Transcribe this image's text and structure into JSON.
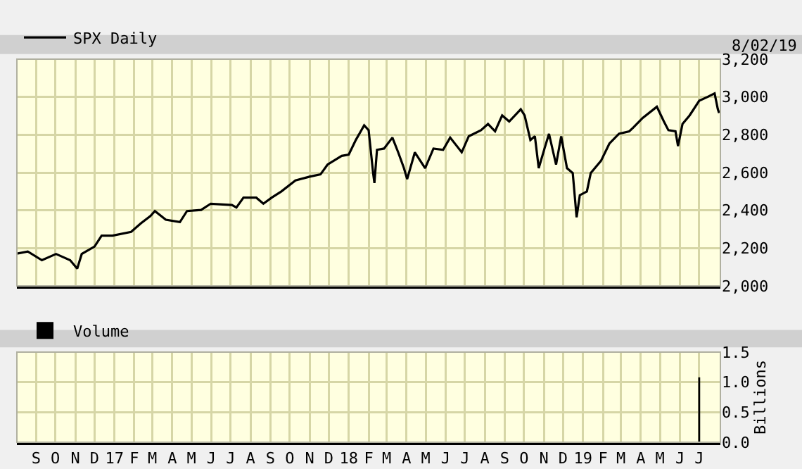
{
  "chart_data": [
    {
      "type": "line",
      "annotations": [
        "8/02/19"
      ],
      "legend": "top left",
      "grid": true,
      "tick_labels": "y",
      "marker": "none",
      "line_style": "solid",
      "x": [
        "2016-08-02",
        "2016-08-19",
        "2016-09-10",
        "2016-10-02",
        "2016-10-24",
        "2016-11-04",
        "2016-11-11",
        "2016-12-01",
        "2016-12-12",
        "2016-12-29",
        "2017-01-27",
        "2017-02-11",
        "2017-02-26",
        "2017-03-05",
        "2017-03-22",
        "2017-04-13",
        "2017-04-24",
        "2017-05-16",
        "2017-05-31",
        "2017-07-03",
        "2017-07-10",
        "2017-07-21",
        "2017-08-10",
        "2017-08-21",
        "2017-09-03",
        "2017-09-18",
        "2017-10-10",
        "2017-11-01",
        "2017-11-18",
        "2017-11-29",
        "2017-12-21",
        "2018-01-01",
        "2018-01-12",
        "2018-01-25",
        "2018-02-01",
        "2018-02-08",
        "2018-02-10",
        "2018-02-14",
        "2018-02-25",
        "2018-03-10",
        "2018-03-19",
        "2018-03-28",
        "2018-04-02",
        "2018-04-14",
        "2018-04-30",
        "2018-05-13",
        "2018-05-28",
        "2018-06-08",
        "2018-06-26",
        "2018-07-07",
        "2018-07-26",
        "2018-08-06",
        "2018-08-17",
        "2018-08-28",
        "2018-09-08",
        "2018-09-26",
        "2018-10-02",
        "2018-10-11",
        "2018-10-18",
        "2018-10-24",
        "2018-11-02",
        "2018-11-09",
        "2018-11-20",
        "2018-11-28",
        "2018-12-07",
        "2018-12-16",
        "2018-12-22",
        "2018-12-27",
        "2019-01-07",
        "2019-01-13",
        "2019-01-29",
        "2019-02-11",
        "2019-02-26",
        "2019-03-14",
        "2019-03-20",
        "2019-04-04",
        "2019-04-26",
        "2019-05-07",
        "2019-05-14",
        "2019-05-25",
        "2019-05-29",
        "2019-06-05",
        "2019-06-16",
        "2019-07-01",
        "2019-07-14",
        "2019-07-25",
        "2019-07-30",
        "2019-08-01"
      ],
      "series": [
        {
          "name": "SPX Daily",
          "color": "#000000",
          "values": [
            2171,
            2182,
            2136,
            2169,
            2136,
            2091,
            2169,
            2208,
            2266,
            2266,
            2286,
            2331,
            2370,
            2396,
            2350,
            2338,
            2396,
            2402,
            2435,
            2428,
            2415,
            2467,
            2467,
            2435,
            2467,
            2500,
            2558,
            2578,
            2590,
            2642,
            2688,
            2695,
            2772,
            2850,
            2824,
            2597,
            2545,
            2720,
            2727,
            2785,
            2707,
            2623,
            2565,
            2707,
            2623,
            2727,
            2720,
            2785,
            2707,
            2792,
            2824,
            2857,
            2818,
            2902,
            2870,
            2935,
            2902,
            2772,
            2792,
            2623,
            2727,
            2805,
            2642,
            2792,
            2623,
            2597,
            2363,
            2480,
            2500,
            2597,
            2662,
            2753,
            2805,
            2818,
            2837,
            2889,
            2948,
            2870,
            2824,
            2818,
            2740,
            2857,
            2902,
            2980,
            3000,
            3019,
            2935,
            2915
          ]
        }
      ],
      "xlim": [
        "2016-08-02",
        "2019-08-03"
      ],
      "xticks": [
        {
          "value": "2016-09-01",
          "label": null
        },
        {
          "value": "2016-10-01",
          "label": null
        },
        {
          "value": "2016-11-01",
          "label": null
        },
        {
          "value": "2016-12-01",
          "label": null
        },
        {
          "value": "2017-01-01",
          "label": null
        },
        {
          "value": "2017-02-01",
          "label": null
        },
        {
          "value": "2017-03-01",
          "label": null
        },
        {
          "value": "2017-04-01",
          "label": null
        },
        {
          "value": "2017-05-01",
          "label": null
        },
        {
          "value": "2017-06-01",
          "label": null
        },
        {
          "value": "2017-07-01",
          "label": null
        },
        {
          "value": "2017-08-01",
          "label": null
        },
        {
          "value": "2017-09-01",
          "label": null
        },
        {
          "value": "2017-10-01",
          "label": null
        },
        {
          "value": "2017-11-01",
          "label": null
        },
        {
          "value": "2017-12-01",
          "label": null
        },
        {
          "value": "2018-01-01",
          "label": null
        },
        {
          "value": "2018-02-01",
          "label": null
        },
        {
          "value": "2018-03-01",
          "label": null
        },
        {
          "value": "2018-04-01",
          "label": null
        },
        {
          "value": "2018-05-01",
          "label": null
        },
        {
          "value": "2018-06-01",
          "label": null
        },
        {
          "value": "2018-07-01",
          "label": null
        },
        {
          "value": "2018-08-01",
          "label": null
        },
        {
          "value": "2018-09-01",
          "label": null
        },
        {
          "value": "2018-10-01",
          "label": null
        },
        {
          "value": "2018-11-01",
          "label": null
        },
        {
          "value": "2018-12-01",
          "label": null
        },
        {
          "value": "2019-01-01",
          "label": null
        },
        {
          "value": "2019-02-01",
          "label": null
        },
        {
          "value": "2019-03-01",
          "label": null
        },
        {
          "value": "2019-04-01",
          "label": null
        },
        {
          "value": "2019-05-01",
          "label": null
        },
        {
          "value": "2019-06-01",
          "label": null
        },
        {
          "value": "2019-07-01",
          "label": null
        }
      ],
      "ylim": [
        2000,
        3200
      ],
      "yticks": [
        {
          "value": 2000,
          "label": "2,000"
        },
        {
          "value": 2200,
          "label": "2,200"
        },
        {
          "value": 2400,
          "label": "2,400"
        },
        {
          "value": 2600,
          "label": "2,600"
        },
        {
          "value": 2800,
          "label": "2,800"
        },
        {
          "value": 3000,
          "label": "3,000"
        },
        {
          "value": 3200,
          "label": "3,200"
        }
      ]
    },
    {
      "type": "bar",
      "ylabel": "Billions",
      "legend": "top left",
      "grid": true,
      "x": [
        "2019-07-01"
      ],
      "series": [
        {
          "name": "Volume",
          "color": "#000000",
          "values": [
            1.08
          ]
        }
      ],
      "xlim": [
        "2016-08-02",
        "2019-08-03"
      ],
      "xticks": [
        {
          "value": "2016-09-01",
          "label": "S"
        },
        {
          "value": "2016-10-01",
          "label": "O"
        },
        {
          "value": "2016-11-01",
          "label": "N"
        },
        {
          "value": "2016-12-01",
          "label": "D"
        },
        {
          "value": "2017-01-01",
          "label": "17"
        },
        {
          "value": "2017-02-01",
          "label": "F"
        },
        {
          "value": "2017-03-01",
          "label": "M"
        },
        {
          "value": "2017-04-01",
          "label": "A"
        },
        {
          "value": "2017-05-01",
          "label": "M"
        },
        {
          "value": "2017-06-01",
          "label": "J"
        },
        {
          "value": "2017-07-01",
          "label": "J"
        },
        {
          "value": "2017-08-01",
          "label": "A"
        },
        {
          "value": "2017-09-01",
          "label": "S"
        },
        {
          "value": "2017-10-01",
          "label": "O"
        },
        {
          "value": "2017-11-01",
          "label": "N"
        },
        {
          "value": "2017-12-01",
          "label": "D"
        },
        {
          "value": "2018-01-01",
          "label": "18"
        },
        {
          "value": "2018-02-01",
          "label": "F"
        },
        {
          "value": "2018-03-01",
          "label": "M"
        },
        {
          "value": "2018-04-01",
          "label": "A"
        },
        {
          "value": "2018-05-01",
          "label": "M"
        },
        {
          "value": "2018-06-01",
          "label": "J"
        },
        {
          "value": "2018-07-01",
          "label": "J"
        },
        {
          "value": "2018-08-01",
          "label": "A"
        },
        {
          "value": "2018-09-01",
          "label": "S"
        },
        {
          "value": "2018-10-01",
          "label": "O"
        },
        {
          "value": "2018-11-01",
          "label": "N"
        },
        {
          "value": "2018-12-01",
          "label": "D"
        },
        {
          "value": "2019-01-01",
          "label": "19"
        },
        {
          "value": "2019-02-01",
          "label": "F"
        },
        {
          "value": "2019-03-01",
          "label": "M"
        },
        {
          "value": "2019-04-01",
          "label": "A"
        },
        {
          "value": "2019-05-01",
          "label": "M"
        },
        {
          "value": "2019-06-01",
          "label": "J"
        },
        {
          "value": "2019-07-01",
          "label": "J"
        }
      ],
      "ylim": [
        0,
        1.5
      ],
      "yticks": [
        {
          "value": 0,
          "label": "0.0"
        },
        {
          "value": 0.5,
          "label": "0.5"
        },
        {
          "value": 1,
          "label": "1.0"
        },
        {
          "value": 1.5,
          "label": "1.5"
        }
      ]
    }
  ]
}
